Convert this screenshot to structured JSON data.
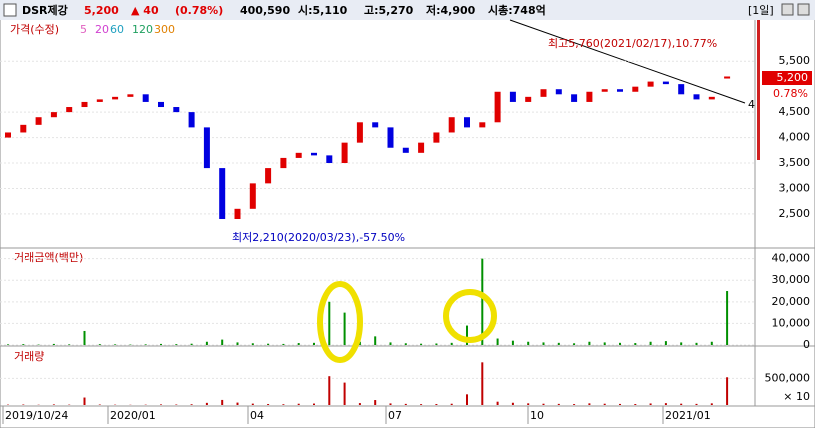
{
  "header": {
    "name": "DSR제강",
    "price": "5,200",
    "change": "▲ 40",
    "change_pct": "(0.78%)",
    "volume": "400,590",
    "open": "시:5,110",
    "high": "고:5,270",
    "low": "저:4,900",
    "market_cap": "시총:748억",
    "period": "[1일]"
  },
  "chart_data": [
    {
      "type": "candlestick",
      "legend": [
        "가격(수정)",
        "5",
        "20",
        "60",
        "120",
        "300"
      ],
      "legend_colors": [
        "#c00000",
        "#e060c0",
        "#d040d0",
        "#20a0c0",
        "#20a060",
        "#e08000"
      ],
      "annotations": {
        "high": "최고5,760(2021/02/17),10.77%",
        "low": "최저2,210(2020/03/23),-57.50%",
        "last": "5,200",
        "last_pct": "0.78%",
        "marker": "4"
      },
      "ylim": [
        1830,
        6310
      ],
      "yticks": [
        {
          "value": 2500,
          "label": "2,500"
        },
        {
          "value": 3000,
          "label": "3,000"
        },
        {
          "value": 3500,
          "label": "3,500"
        },
        {
          "value": 4000,
          "label": "4,000"
        },
        {
          "value": 4500,
          "label": "4,500"
        },
        {
          "value": 5500,
          "label": "5,500"
        }
      ],
      "up_color": "#e00000",
      "down_color": "#0000e0",
      "open": [
        4000,
        4100,
        4250,
        4400,
        4500,
        4600,
        4700,
        4750,
        4800,
        4850,
        4700,
        4600,
        4500,
        4200,
        3400,
        2400,
        2600,
        3100,
        3400,
        3600,
        3700,
        3650,
        3500,
        3900,
        4300,
        4200,
        3800,
        3700,
        3900,
        4100,
        4400,
        4200,
        4300,
        4900,
        4700,
        4800,
        4950,
        4850,
        4700,
        4900,
        4950,
        4900,
        5000,
        5100,
        5050,
        4850,
        4750,
        5160
      ],
      "close": [
        4100,
        4250,
        4400,
        4500,
        4600,
        4700,
        4750,
        4800,
        4850,
        4700,
        4600,
        4500,
        4200,
        3400,
        2400,
        2600,
        3100,
        3400,
        3600,
        3700,
        3650,
        3500,
        3900,
        4300,
        4200,
        3800,
        3700,
        3900,
        4100,
        4400,
        4200,
        4300,
        4900,
        4700,
        4800,
        4950,
        4850,
        4700,
        4900,
        4950,
        4900,
        5000,
        5100,
        5050,
        4850,
        4750,
        4800,
        5200
      ]
    },
    {
      "type": "bar",
      "title": "거래금액(백만)",
      "color": "#009000",
      "ylim": [
        0,
        44000
      ],
      "yticks": [
        {
          "value": 0,
          "label": "0"
        },
        {
          "value": 10000,
          "label": "10,000"
        },
        {
          "value": 20000,
          "label": "20,000"
        },
        {
          "value": 30000,
          "label": "30,000"
        },
        {
          "value": 40000,
          "label": "40,000"
        }
      ],
      "values": [
        300,
        400,
        200,
        500,
        300,
        6500,
        400,
        300,
        200,
        300,
        500,
        400,
        600,
        1500,
        2500,
        1200,
        800,
        600,
        500,
        900,
        1000,
        20000,
        15000,
        1500,
        4000,
        1200,
        800,
        600,
        700,
        1000,
        9000,
        40000,
        3000,
        2000,
        1500,
        1200,
        1000,
        800,
        1500,
        1200,
        1000,
        900,
        1500,
        1800,
        1200,
        1000,
        1500,
        25000
      ]
    },
    {
      "type": "bar",
      "title": "거래량",
      "color": "#c00000",
      "unit": "× 10",
      "ylim": [
        0,
        1050000
      ],
      "yticks": [
        {
          "value": 500000,
          "label": "500,000"
        }
      ],
      "values": [
        7000,
        9000,
        5000,
        11000,
        7000,
        140000,
        9000,
        6000,
        4000,
        6000,
        11000,
        9000,
        14000,
        40000,
        95000,
        45000,
        26000,
        18000,
        14000,
        24000,
        27000,
        540000,
        420000,
        36000,
        93000,
        30000,
        21000,
        16000,
        18000,
        24000,
        200000,
        800000,
        62000,
        42000,
        31000,
        24000,
        21000,
        17000,
        31000,
        24000,
        20000,
        18000,
        29000,
        35000,
        25000,
        21000,
        31000,
        520000
      ],
      "x_labels": [
        "2019/10/24",
        "2020/01",
        "04",
        "07",
        "10",
        "2021/01"
      ]
    }
  ]
}
